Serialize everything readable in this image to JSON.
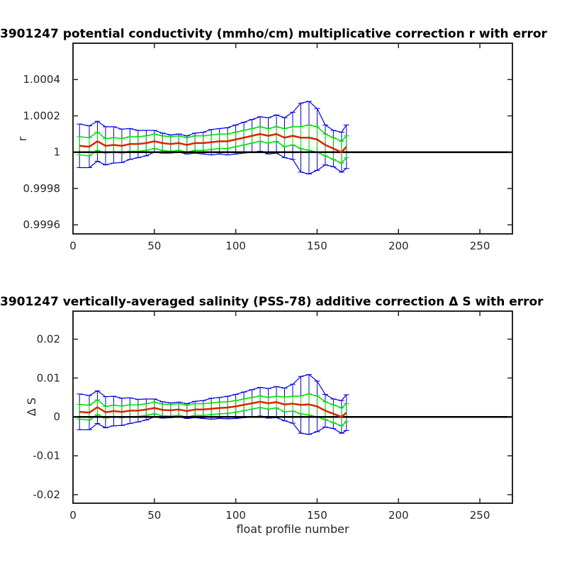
{
  "chart_data": [
    {
      "type": "line",
      "title": "3901247 potential conductivity (mmho/cm) multiplicative correction r with error",
      "xlabel": "",
      "ylabel": "r",
      "xlim": [
        0,
        270
      ],
      "ylim": [
        0.99955,
        1.0006
      ],
      "xticks": [
        0,
        50,
        100,
        150,
        200,
        250
      ],
      "xtick_labels": [
        "0",
        "50",
        "100",
        "150",
        "200",
        "250"
      ],
      "yticks": [
        0.9996,
        0.9998,
        1.0,
        1.0002,
        1.0004
      ],
      "ytick_labels": [
        "0.9996",
        "0.9998",
        "1",
        "1.0002",
        "1.0004"
      ],
      "grid": false,
      "x": [
        4,
        10,
        15,
        20,
        25,
        30,
        35,
        40,
        45,
        50,
        55,
        60,
        65,
        70,
        75,
        80,
        85,
        90,
        95,
        100,
        105,
        110,
        115,
        120,
        125,
        130,
        135,
        140,
        145,
        150,
        155,
        160,
        165,
        168
      ],
      "series": [
        {
          "name": "",
          "color": "#dd2200",
          "role": "correction",
          "values": [
            1.000035,
            1.00003,
            1.00006,
            1.000035,
            1.00004,
            1.000035,
            1.000045,
            1.000045,
            1.00005,
            1.00006,
            1.00005,
            1.000045,
            1.00005,
            1.00004,
            1.00005,
            1.00005,
            1.000055,
            1.00006,
            1.00006,
            1.00007,
            1.00008,
            1.00009,
            1.0001,
            1.00009,
            1.0001,
            1.00008,
            1.00009,
            1.00008,
            1.00008,
            1.00007,
            1.00004,
            1.00002,
            1.0,
            1.00003
          ]
        },
        {
          "name": "",
          "color": "#00dd00",
          "role": "error_inner",
          "values": [
            5e-05,
            5e-05,
            5e-05,
            4e-05,
            4e-05,
            4e-05,
            4e-05,
            4e-05,
            4e-05,
            4e-05,
            4e-05,
            4e-05,
            4e-05,
            4e-05,
            4e-05,
            4e-05,
            4e-05,
            4e-05,
            4e-05,
            4e-05,
            4e-05,
            4e-05,
            4e-05,
            4e-05,
            4e-05,
            5e-05,
            5e-05,
            6e-05,
            7e-05,
            7e-05,
            6e-05,
            6e-05,
            6e-05,
            6e-05
          ]
        },
        {
          "name": "",
          "color": "#0000dd",
          "role": "error_outer",
          "values": [
            0.00012,
            0.000115,
            0.00011,
            0.000105,
            0.0001,
            9.2e-05,
            8.5e-05,
            7.5e-05,
            7e-05,
            6e-05,
            5.5e-05,
            5e-05,
            5e-05,
            5e-05,
            5.5e-05,
            6e-05,
            7e-05,
            7e-05,
            7.5e-05,
            8e-05,
            8.5e-05,
            9e-05,
            9.5e-05,
            0.0001,
            0.000105,
            0.00011,
            0.00013,
            0.00019,
            0.0002,
            0.00017,
            0.00011,
            0.0001,
            0.00011,
            0.00012
          ]
        }
      ],
      "reference_line": {
        "y": 1.0,
        "color": "#000000"
      }
    },
    {
      "type": "line",
      "title": "3901247 vertically-averaged salinity (PSS-78) additive correction Δ S with error",
      "xlabel": "float profile number",
      "ylabel": "Δ S",
      "xlim": [
        0,
        270
      ],
      "ylim": [
        -0.0222,
        0.0272
      ],
      "xticks": [
        0,
        50,
        100,
        150,
        200,
        250
      ],
      "xtick_labels": [
        "0",
        "50",
        "100",
        "150",
        "200",
        "250"
      ],
      "yticks": [
        -0.02,
        -0.01,
        0.0,
        0.01,
        0.02
      ],
      "ytick_labels": [
        "-0.02",
        "-0.01",
        "0",
        "0.01",
        "0.02"
      ],
      "grid": false,
      "x": [
        4,
        10,
        15,
        20,
        25,
        30,
        35,
        40,
        45,
        50,
        55,
        60,
        65,
        70,
        75,
        80,
        85,
        90,
        95,
        100,
        105,
        110,
        115,
        120,
        125,
        130,
        135,
        140,
        145,
        150,
        155,
        160,
        165,
        168
      ],
      "series": [
        {
          "name": "",
          "color": "#dd2200",
          "role": "correction",
          "values": [
            0.0013,
            0.0011,
            0.0025,
            0.0012,
            0.0015,
            0.0013,
            0.0016,
            0.0016,
            0.0019,
            0.0023,
            0.0018,
            0.0017,
            0.0019,
            0.0015,
            0.0019,
            0.0019,
            0.0021,
            0.0023,
            0.0024,
            0.0027,
            0.0031,
            0.0035,
            0.0039,
            0.0035,
            0.0038,
            0.0032,
            0.0034,
            0.0031,
            0.0032,
            0.0027,
            0.0016,
            0.0008,
            0.0,
            0.0011
          ]
        },
        {
          "name": "",
          "color": "#00dd00",
          "role": "error_inner",
          "values": [
            0.0019,
            0.0019,
            0.0019,
            0.0015,
            0.0015,
            0.0015,
            0.0015,
            0.0015,
            0.0015,
            0.0015,
            0.0015,
            0.0015,
            0.0015,
            0.0015,
            0.0015,
            0.0015,
            0.0015,
            0.0015,
            0.0015,
            0.0015,
            0.0015,
            0.0015,
            0.0015,
            0.0015,
            0.0015,
            0.0019,
            0.0019,
            0.0023,
            0.0027,
            0.0027,
            0.0023,
            0.0023,
            0.0023,
            0.0023
          ]
        },
        {
          "name": "",
          "color": "#0000dd",
          "role": "error_outer",
          "values": [
            0.0046,
            0.0044,
            0.0042,
            0.004,
            0.0038,
            0.0035,
            0.0033,
            0.0029,
            0.0027,
            0.0023,
            0.0021,
            0.0019,
            0.0019,
            0.0019,
            0.0021,
            0.0023,
            0.0027,
            0.0027,
            0.0029,
            0.0031,
            0.0033,
            0.0035,
            0.0037,
            0.0038,
            0.004,
            0.0042,
            0.005,
            0.0073,
            0.0077,
            0.0065,
            0.0042,
            0.0038,
            0.0042,
            0.0046
          ]
        }
      ],
      "reference_line": {
        "y": 0.0,
        "color": "#000000"
      }
    }
  ]
}
